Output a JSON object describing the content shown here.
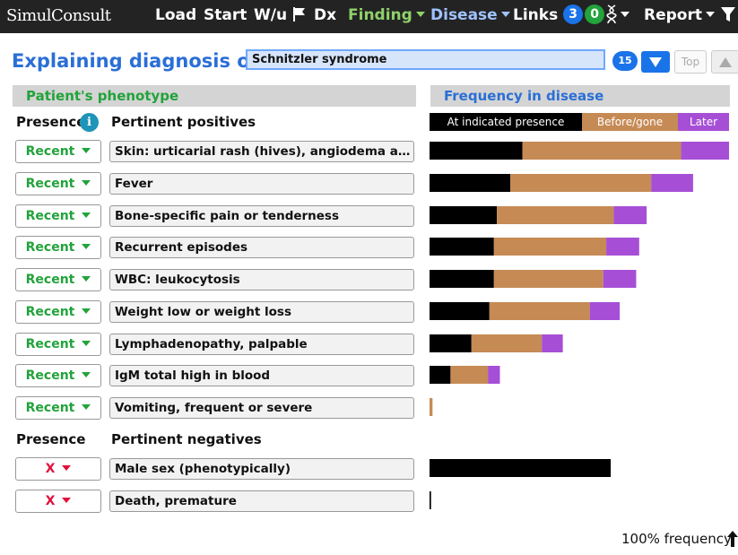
{
  "nav": {
    "logo": "SimulConsult",
    "items": {
      "load": "Load",
      "start": "Start",
      "wu": "W/u",
      "dx": "Dx",
      "finding": "Finding",
      "disease": "Disease",
      "links": "Links",
      "links_count_blue": "3",
      "links_count_green": "0",
      "report": "Report"
    }
  },
  "header": {
    "title": "Explaining diagnosis of",
    "diagnosis_value": "Schnitzler syndrome",
    "count": "15",
    "top_button": "Top"
  },
  "phenotype": {
    "section_title": "Patient's phenotype",
    "presence_label": "Presence",
    "positives_label": "Pertinent positives",
    "negatives_label": "Pertinent negatives",
    "positives": [
      {
        "presence": "Recent",
        "finding": "Skin: urticarial rash (hives), angiodema and/or ..."
      },
      {
        "presence": "Recent",
        "finding": "Fever"
      },
      {
        "presence": "Recent",
        "finding": "Bone-specific pain or tenderness"
      },
      {
        "presence": "Recent",
        "finding": "Recurrent episodes"
      },
      {
        "presence": "Recent",
        "finding": "WBC: leukocytosis"
      },
      {
        "presence": "Recent",
        "finding": "Weight low or weight loss"
      },
      {
        "presence": "Recent",
        "finding": "Lymphadenopathy, palpable"
      },
      {
        "presence": "Recent",
        "finding": "IgM total high in blood"
      },
      {
        "presence": "Recent",
        "finding": "Vomiting, frequent or severe"
      }
    ],
    "negatives": [
      {
        "presence": "X",
        "finding": "Male sex (phenotypically)"
      },
      {
        "presence": "X",
        "finding": "Death, premature"
      }
    ]
  },
  "frequency": {
    "section_title": "Frequency in disease",
    "legend": {
      "present": "At indicated presence",
      "before": "Before/gone",
      "later": "Later"
    },
    "colors": {
      "present": "#000000",
      "before": "#c68a55",
      "later": "#a64fd6"
    },
    "footer": "100% frequency",
    "positives": [
      {
        "present": 0.31,
        "before": 0.53,
        "later": 0.16
      },
      {
        "present": 0.27,
        "before": 0.47,
        "later": 0.14
      },
      {
        "present": 0.225,
        "before": 0.39,
        "later": 0.11
      },
      {
        "present": 0.215,
        "before": 0.375,
        "later": 0.11
      },
      {
        "present": 0.215,
        "before": 0.365,
        "later": 0.11
      },
      {
        "present": 0.2,
        "before": 0.335,
        "later": 0.1
      },
      {
        "present": 0.14,
        "before": 0.235,
        "later": 0.07
      },
      {
        "present": 0.07,
        "before": 0.125,
        "later": 0.04
      },
      {
        "present": 0.0,
        "before": 0.01,
        "later": 0.0
      }
    ],
    "negatives": [
      {
        "present": 0.605,
        "before": 0.0,
        "later": 0.0
      },
      {
        "present": 0.005,
        "before": 0.0,
        "later": 0.0
      }
    ]
  }
}
